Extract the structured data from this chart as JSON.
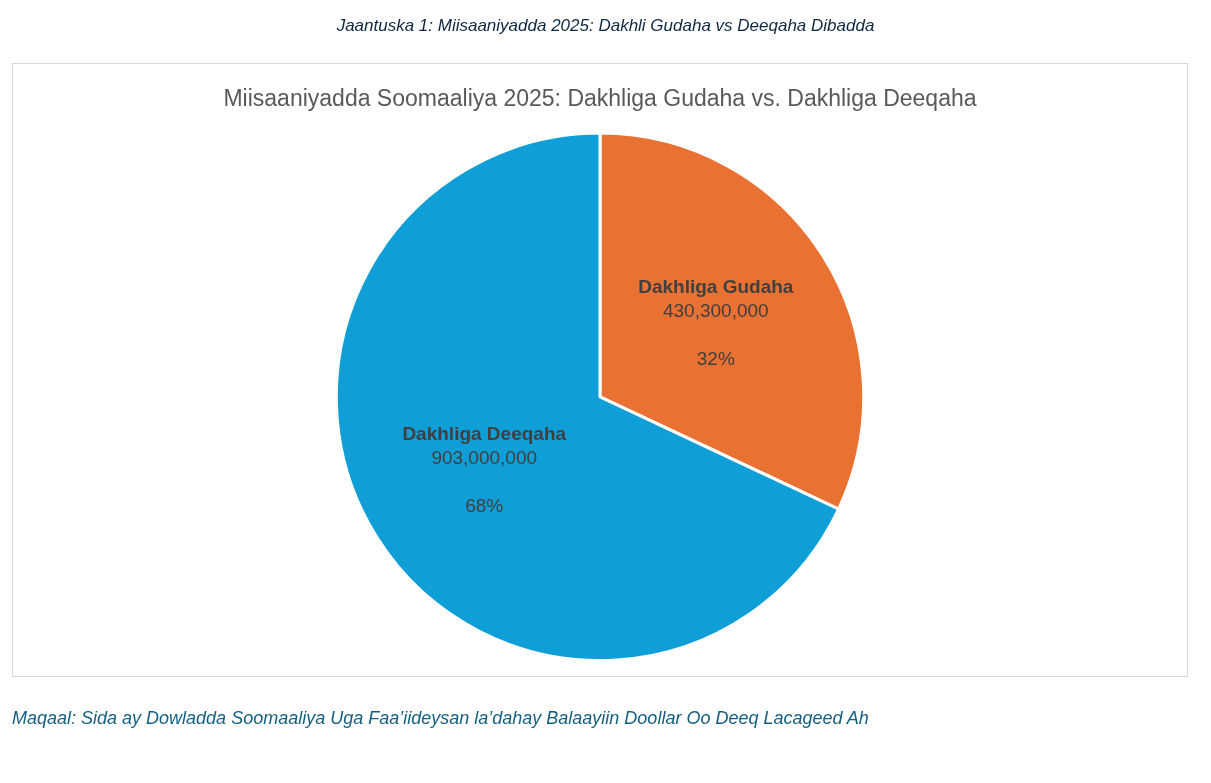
{
  "chart_data": {
    "type": "pie",
    "title": "Miisaaniyadda Soomaaliya 2025: Dakhliga Gudaha vs. Dakhliga Deeqaha",
    "categories": [
      "Dakhliga Gudaha",
      "Dakhliga Deeqaha"
    ],
    "values": [
      32,
      68
    ],
    "colors": [
      "#e97132",
      "#0f9ed5"
    ],
    "value_labels": [
      "430,300,000\n\n32%",
      "903,000,000\n\n68%"
    ],
    "legend": false,
    "annotations": [
      "Jaantuska 1: Miisaaniyadda 2025: Dakhli Gudaha vs Deeqaha Dibadda",
      "Maqaal: Sida ay Dowladda Soomaaliya Uga Faa’iideysan la’dahay Balaayiin Doollar Oo Deeq Lacageed Ah"
    ]
  }
}
